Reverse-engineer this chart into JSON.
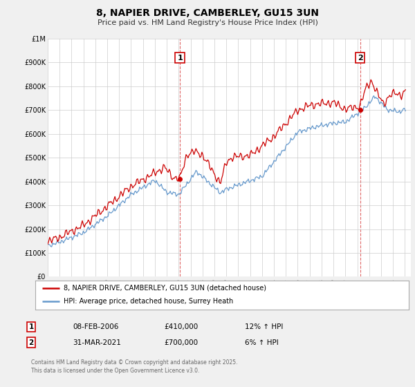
{
  "title": "8, NAPIER DRIVE, CAMBERLEY, GU15 3UN",
  "subtitle": "Price paid vs. HM Land Registry's House Price Index (HPI)",
  "bg_color": "#f0f0f0",
  "plot_bg_color": "#ffffff",
  "red_color": "#cc0000",
  "blue_color": "#6699cc",
  "vline_color": "#cc0000",
  "grid_color": "#cccccc",
  "xmin": 1995.0,
  "xmax": 2025.5,
  "ymin": 0,
  "ymax": 1000000,
  "yticks": [
    0,
    100000,
    200000,
    300000,
    400000,
    500000,
    600000,
    700000,
    800000,
    900000,
    1000000
  ],
  "ytick_labels": [
    "£0",
    "£100K",
    "£200K",
    "£300K",
    "£400K",
    "£500K",
    "£600K",
    "£700K",
    "£800K",
    "£900K",
    "£1M"
  ],
  "xticks": [
    1995,
    1996,
    1997,
    1998,
    1999,
    2000,
    2001,
    2002,
    2003,
    2004,
    2005,
    2006,
    2007,
    2008,
    2009,
    2010,
    2011,
    2012,
    2013,
    2014,
    2015,
    2016,
    2017,
    2018,
    2019,
    2020,
    2021,
    2022,
    2023,
    2024,
    2025
  ],
  "marker1_x": 2006.1,
  "marker1_y": 410000,
  "marker1_label": "1",
  "marker1_date": "08-FEB-2006",
  "marker1_price": "£410,000",
  "marker1_hpi": "12% ↑ HPI",
  "marker2_x": 2021.25,
  "marker2_y": 700000,
  "marker2_label": "2",
  "marker2_date": "31-MAR-2021",
  "marker2_price": "£700,000",
  "marker2_hpi": "6% ↑ HPI",
  "legend_line1": "8, NAPIER DRIVE, CAMBERLEY, GU15 3UN (detached house)",
  "legend_line2": "HPI: Average price, detached house, Surrey Heath",
  "footer": "Contains HM Land Registry data © Crown copyright and database right 2025.\nThis data is licensed under the Open Government Licence v3.0."
}
